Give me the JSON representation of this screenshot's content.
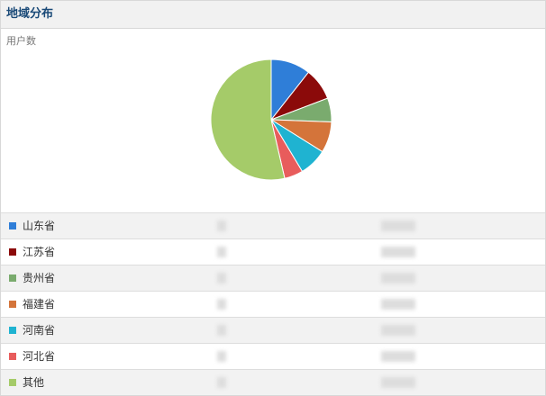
{
  "chart_data": {
    "type": "pie",
    "title": "地域分布",
    "subtitle": "用户数",
    "categories": [
      "山东省",
      "江苏省",
      "贵州省",
      "福建省",
      "河南省",
      "河北省",
      "其他"
    ],
    "values": [
      10.6,
      8.6,
      6.4,
      8.3,
      7.5,
      5.0,
      53.6
    ],
    "colors": [
      "#2f7ed8",
      "#8b0a0a",
      "#7aab6e",
      "#d4743a",
      "#1fb3d1",
      "#e85c5c",
      "#a5cb69"
    ]
  }
}
